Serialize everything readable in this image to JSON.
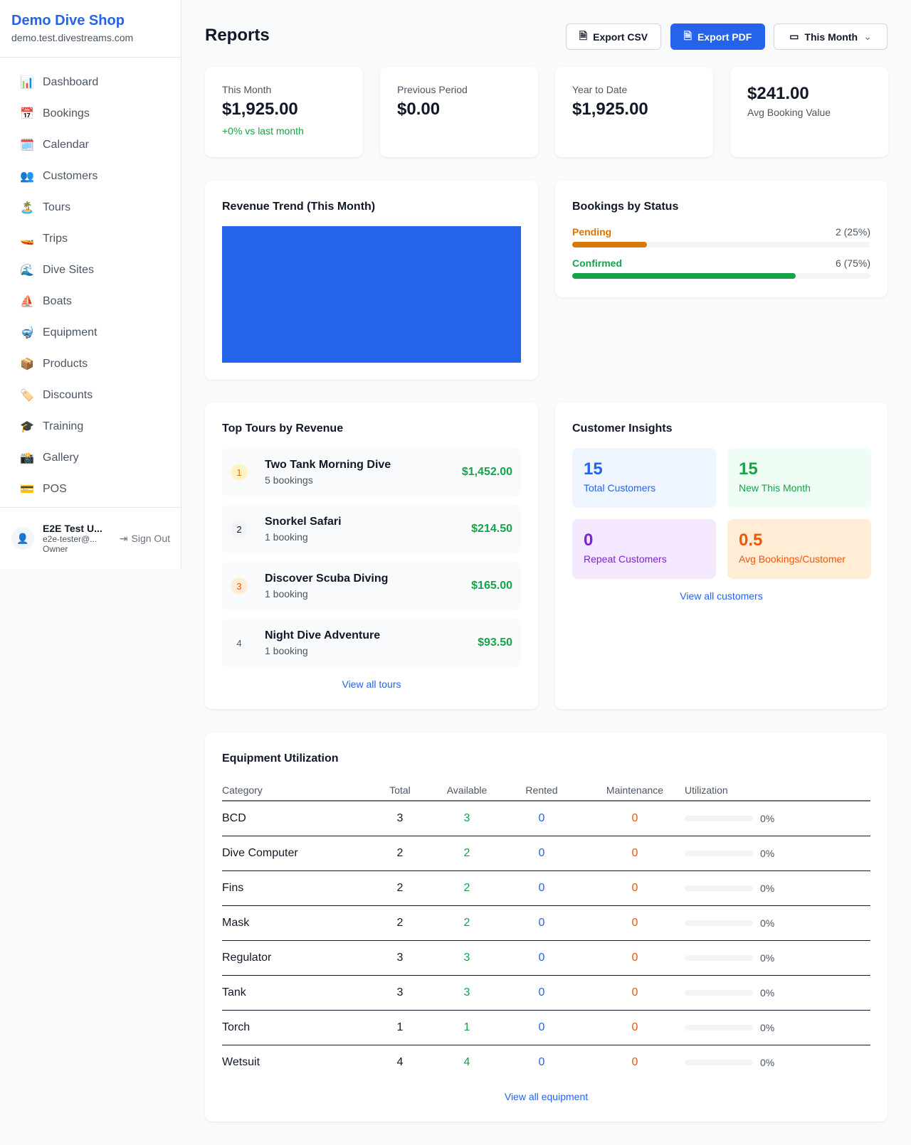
{
  "sidebar": {
    "brand": "Demo Dive Shop",
    "domain": "demo.test.divestreams.com",
    "items": [
      {
        "icon": "📊",
        "label": "Dashboard"
      },
      {
        "icon": "📅",
        "label": "Bookings"
      },
      {
        "icon": "🗓️",
        "label": "Calendar"
      },
      {
        "icon": "👥",
        "label": "Customers"
      },
      {
        "icon": "🏝️",
        "label": "Tours"
      },
      {
        "icon": "🚤",
        "label": "Trips"
      },
      {
        "icon": "🌊",
        "label": "Dive Sites"
      },
      {
        "icon": "⛵",
        "label": "Boats"
      },
      {
        "icon": "🤿",
        "label": "Equipment"
      },
      {
        "icon": "📦",
        "label": "Products"
      },
      {
        "icon": "🏷️",
        "label": "Discounts"
      },
      {
        "icon": "🎓",
        "label": "Training"
      },
      {
        "icon": "📸",
        "label": "Gallery"
      },
      {
        "icon": "💳",
        "label": "POS"
      }
    ],
    "user": {
      "name": "E2E Test U...",
      "email": "e2e-tester@...",
      "role": "Owner",
      "sign_out": "Sign Out"
    }
  },
  "header": {
    "title": "Reports",
    "export_csv": "Export CSV",
    "export_pdf": "Export PDF",
    "period": "This Month"
  },
  "stats": [
    {
      "label": "This Month",
      "value": "$1,925.00",
      "sub": "+0% vs last month"
    },
    {
      "label": "Previous Period",
      "value": "$0.00"
    },
    {
      "label": "Year to Date",
      "value": "$1,925.00"
    },
    {
      "value": "$241.00",
      "label": "Avg Booking Value"
    }
  ],
  "revenue_trend": {
    "title": "Revenue Trend (This Month)",
    "color": "#2563eb"
  },
  "bookings_status": {
    "title": "Bookings by Status",
    "items": [
      {
        "label": "Pending",
        "value": "2 (25%)",
        "percent": 25,
        "color": "#d97706"
      },
      {
        "label": "Confirmed",
        "value": "6 (75%)",
        "percent": 75,
        "color": "#16a34a"
      }
    ]
  },
  "top_tours": {
    "title": "Top Tours by Revenue",
    "link": "View all tours",
    "items": [
      {
        "rank": "1",
        "name": "Two Tank Morning Dive",
        "bookings": "5 bookings",
        "revenue": "$1,452.00"
      },
      {
        "rank": "2",
        "name": "Snorkel Safari",
        "bookings": "1 booking",
        "revenue": "$214.50"
      },
      {
        "rank": "3",
        "name": "Discover Scuba Diving",
        "bookings": "1 booking",
        "revenue": "$165.00"
      },
      {
        "rank": "4",
        "name": "Night Dive Adventure",
        "bookings": "1 booking",
        "revenue": "$93.50"
      }
    ]
  },
  "customer_insights": {
    "title": "Customer Insights",
    "link": "View all customers",
    "items": [
      {
        "value": "15",
        "label": "Total Customers"
      },
      {
        "value": "15",
        "label": "New This Month"
      },
      {
        "value": "0",
        "label": "Repeat Customers"
      },
      {
        "value": "0.5",
        "label": "Avg Bookings/Customer"
      }
    ]
  },
  "equipment": {
    "title": "Equipment Utilization",
    "link": "View all equipment",
    "columns": [
      "Category",
      "Total",
      "Available",
      "Rented",
      "Maintenance",
      "Utilization"
    ],
    "rows": [
      [
        "BCD",
        "3",
        "3",
        "0",
        "0",
        "0%"
      ],
      [
        "Dive Computer",
        "2",
        "2",
        "0",
        "0",
        "0%"
      ],
      [
        "Fins",
        "2",
        "2",
        "0",
        "0",
        "0%"
      ],
      [
        "Mask",
        "2",
        "2",
        "0",
        "0",
        "0%"
      ],
      [
        "Regulator",
        "3",
        "3",
        "0",
        "0",
        "0%"
      ],
      [
        "Tank",
        "3",
        "3",
        "0",
        "0",
        "0%"
      ],
      [
        "Torch",
        "1",
        "1",
        "0",
        "0",
        "0%"
      ],
      [
        "Wetsuit",
        "4",
        "4",
        "0",
        "0",
        "0%"
      ]
    ]
  }
}
